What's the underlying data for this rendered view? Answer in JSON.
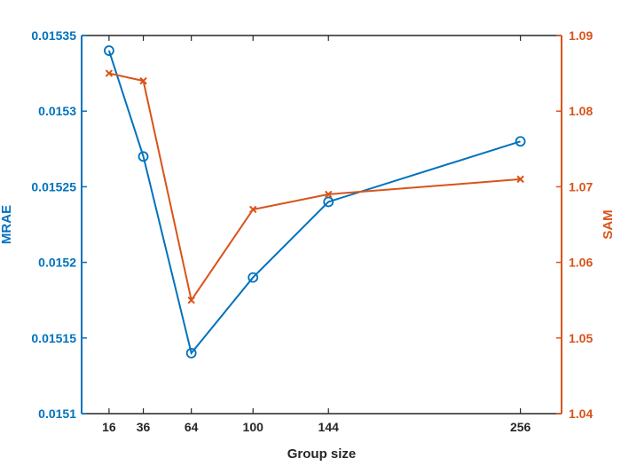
{
  "chart_data": {
    "type": "line",
    "title": "",
    "xlabel": "Group size",
    "ylabel_left": "MRAE",
    "ylabel_right": "SAM",
    "x": [
      16,
      36,
      64,
      100,
      144,
      256
    ],
    "xlim": [
      0,
      280
    ],
    "ylim_left": [
      0.0151,
      0.01535
    ],
    "ylim_right": [
      1.04,
      1.09
    ],
    "xticks": [
      "16",
      "36",
      "64",
      "100",
      "144",
      "256"
    ],
    "yticks_left": [
      "0.0151",
      "0.01515",
      "0.0152",
      "0.01525",
      "0.0153",
      "0.01535"
    ],
    "yticks_right": [
      "1.04",
      "1.05",
      "1.06",
      "1.07",
      "1.08",
      "1.09"
    ],
    "grid": false,
    "series": [
      {
        "axis": "left",
        "marker": "circle",
        "color": "#0072BD",
        "values": [
          0.01534,
          0.01527,
          0.01514,
          0.01519,
          0.01524,
          0.01528
        ]
      },
      {
        "axis": "right",
        "marker": "x",
        "color": "#D95319",
        "values": [
          1.085,
          1.084,
          1.055,
          1.067,
          1.069,
          1.071
        ]
      }
    ]
  }
}
